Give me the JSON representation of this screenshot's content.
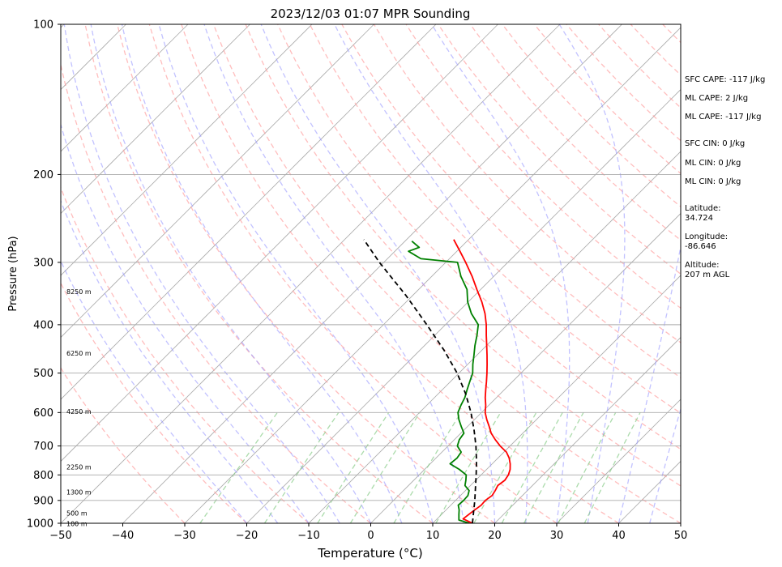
{
  "chart_data": {
    "type": "line",
    "title": "2023/12/03 01:07 MPR Sounding",
    "xlabel": "Temperature (°C)",
    "ylabel": "Pressure (hPa)",
    "xlim": [
      -50,
      50
    ],
    "ylim": [
      1000,
      100
    ],
    "y_scale": "log",
    "x_ticks": [
      "−50",
      "−40",
      "−30",
      "−20",
      "−10",
      "0",
      "10",
      "20",
      "30",
      "40",
      "50"
    ],
    "y_ticks": [
      "100",
      "200",
      "300",
      "400",
      "500",
      "600",
      "700",
      "800",
      "900",
      "1000"
    ],
    "grid": true,
    "height_labels": [
      "100 m",
      "500 m",
      "1300 m",
      "2250 m",
      "4250 m",
      "6250 m",
      "8250 m"
    ],
    "series": [
      {
        "key": "temperature",
        "color": "#ff0000",
        "pressure": [
          1000,
          980,
          950,
          920,
          900,
          880,
          860,
          840,
          820,
          800,
          780,
          760,
          740,
          720,
          700,
          680,
          660,
          640,
          620,
          600,
          580,
          560,
          540,
          520,
          500,
          480,
          460,
          440,
          420,
          400,
          380,
          360,
          340,
          320,
          300,
          285,
          270
        ],
        "values": [
          16.4,
          14.2,
          14.5,
          14.9,
          14.8,
          15.1,
          14.8,
          14.4,
          14.7,
          14.4,
          13.8,
          12.9,
          11.8,
          10.4,
          8.4,
          6.6,
          4.9,
          3.5,
          2.0,
          0.6,
          -0.5,
          -1.8,
          -3.0,
          -4.2,
          -5.5,
          -6.9,
          -8.4,
          -10.0,
          -11.7,
          -13.4,
          -15.4,
          -17.8,
          -20.6,
          -23.5,
          -26.8,
          -29.5,
          -32.4
        ]
      },
      {
        "key": "dewpoint",
        "color": "#008000",
        "pressure": [
          1000,
          985,
          960,
          940,
          920,
          900,
          880,
          860,
          840,
          820,
          800,
          780,
          760,
          740,
          720,
          700,
          680,
          660,
          640,
          620,
          600,
          580,
          560,
          540,
          520,
          500,
          480,
          460,
          440,
          420,
          400,
          380,
          360,
          340,
          320,
          300,
          295,
          285,
          280,
          272
        ],
        "values": [
          15.9,
          13.7,
          12.8,
          12.1,
          11.2,
          11.3,
          11.2,
          10.6,
          9.1,
          8.4,
          7.6,
          5.6,
          3.2,
          3.4,
          3.1,
          1.5,
          0.8,
          0.5,
          -1.0,
          -2.5,
          -3.8,
          -4.5,
          -5.1,
          -6.0,
          -6.9,
          -7.8,
          -9.2,
          -10.5,
          -11.9,
          -13.2,
          -14.7,
          -17.6,
          -20.1,
          -22.2,
          -25.3,
          -28.1,
          -34.6,
          -37.8,
          -36.7,
          -38.9
        ]
      },
      {
        "key": "parcel",
        "color": "#000000",
        "dashed": true,
        "pressure": [
          1000,
          950,
          900,
          850,
          800,
          750,
          700,
          650,
          600,
          550,
          500,
          450,
          400,
          350,
          300,
          270
        ],
        "values": [
          16.4,
          14.8,
          13.1,
          11.2,
          9.2,
          7.0,
          4.5,
          1.6,
          -1.7,
          -5.6,
          -10.3,
          -16.1,
          -23.0,
          -31.0,
          -40.7,
          -46.9
        ]
      }
    ],
    "background_lines": {
      "dry_adiabats_colors": "#ff9999",
      "moist_adiabats_color": "#9999ff",
      "mixing_ratio_color": "#88cc88",
      "isotherm_color": "#aaaaaa"
    },
    "indices": [
      "SFC CAPE: -117 J/kg",
      "ML CAPE: 2 J/kg",
      "ML CAPE: -117 J/kg",
      "SFC CIN: 0 J/kg",
      "ML CIN: 0 J/kg",
      "ML CIN: 0 J/kg"
    ],
    "location": {
      "lat_label": "Latitude:",
      "lat_value": "34.724",
      "lon_label": "Longitude:",
      "lon_value": "-86.646",
      "alt_label": "Altitude:",
      "alt_value": "207 m AGL"
    }
  }
}
